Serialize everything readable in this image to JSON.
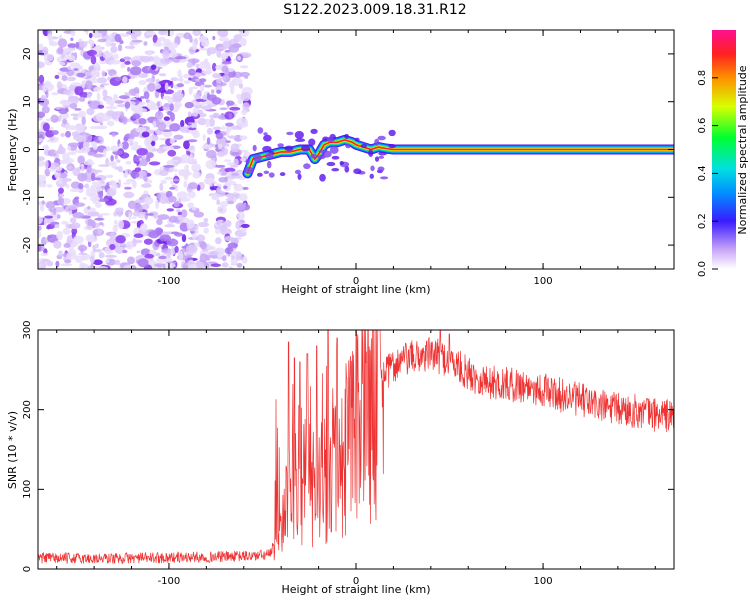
{
  "page_title": "S122.2023.009.18.31.R12",
  "chart_data": [
    {
      "type": "heatmap",
      "title": "",
      "xlabel": "Height of straight line (km)",
      "ylabel": "Frequency (Hz)",
      "xlim": [
        -170,
        170
      ],
      "ylim": [
        -25,
        25
      ],
      "x_ticks": [
        -100,
        0,
        100
      ],
      "y_ticks": [
        20,
        10,
        0,
        -10,
        -20
      ],
      "colorbar": {
        "label": "Normalized spectral amplitude",
        "range": [
          0,
          1
        ],
        "ticks": [
          0.0,
          0.2,
          0.4,
          0.6,
          0.8
        ]
      },
      "noise_region_x": [
        -170,
        -58
      ],
      "signal_line": {
        "x_start": -58,
        "x_end": 170,
        "frequency": 0,
        "trace": [
          [
            -58,
            -5
          ],
          [
            -55,
            -2
          ],
          [
            -50,
            -1.5
          ],
          [
            -45,
            -1
          ],
          [
            -40,
            -0.5
          ],
          [
            -35,
            -0.5
          ],
          [
            -30,
            0
          ],
          [
            -25,
            0
          ],
          [
            -22,
            -2
          ],
          [
            -20,
            -1
          ],
          [
            -17,
            1
          ],
          [
            -14,
            1.5
          ],
          [
            -10,
            1.5
          ],
          [
            -6,
            2
          ],
          [
            -2,
            1.5
          ],
          [
            0,
            1
          ],
          [
            4,
            0.5
          ],
          [
            8,
            0
          ],
          [
            12,
            0.5
          ],
          [
            16,
            0.2
          ],
          [
            20,
            0
          ],
          [
            80,
            0
          ],
          [
            170,
            0
          ]
        ]
      }
    },
    {
      "type": "line",
      "title": "",
      "xlabel": "Height of straight line (km)",
      "ylabel": "SNR (10 * v/v)",
      "xlim": [
        -170,
        170
      ],
      "ylim": [
        0,
        300
      ],
      "x_ticks": [
        -100,
        0,
        100
      ],
      "y_ticks": [
        0,
        100,
        200,
        300
      ],
      "series_color": "#ee3333",
      "envelope": [
        [
          -170,
          14
        ],
        [
          -140,
          13
        ],
        [
          -110,
          14
        ],
        [
          -80,
          15
        ],
        [
          -60,
          16
        ],
        [
          -50,
          17
        ],
        [
          -44,
          20
        ],
        [
          -40,
          45
        ],
        [
          -36,
          90
        ],
        [
          -32,
          120
        ],
        [
          -28,
          115
        ],
        [
          -24,
          110
        ],
        [
          -20,
          105
        ],
        [
          -16,
          115
        ],
        [
          -12,
          125
        ],
        [
          -8,
          135
        ],
        [
          -4,
          150
        ],
        [
          0,
          170
        ],
        [
          4,
          195
        ],
        [
          8,
          215
        ],
        [
          12,
          232
        ],
        [
          16,
          245
        ],
        [
          20,
          255
        ],
        [
          25,
          262
        ],
        [
          30,
          265
        ],
        [
          40,
          270
        ],
        [
          50,
          262
        ],
        [
          60,
          245
        ],
        [
          70,
          235
        ],
        [
          80,
          232
        ],
        [
          90,
          230
        ],
        [
          100,
          225
        ],
        [
          110,
          218
        ],
        [
          120,
          212
        ],
        [
          130,
          205
        ],
        [
          140,
          200
        ],
        [
          150,
          198
        ],
        [
          160,
          194
        ],
        [
          170,
          192
        ]
      ],
      "spikes": [
        [
          -36,
          285
        ],
        [
          -33,
          265
        ],
        [
          -30,
          260
        ],
        [
          -26,
          270
        ],
        [
          -21,
          280
        ],
        [
          -15,
          300
        ],
        [
          -10,
          290
        ],
        [
          -5,
          240
        ],
        [
          45,
          300
        ],
        [
          50,
          295
        ]
      ]
    }
  ],
  "colors": {
    "axis": "#000000",
    "line": "#ee3333",
    "noise": "#8a3cf0"
  }
}
